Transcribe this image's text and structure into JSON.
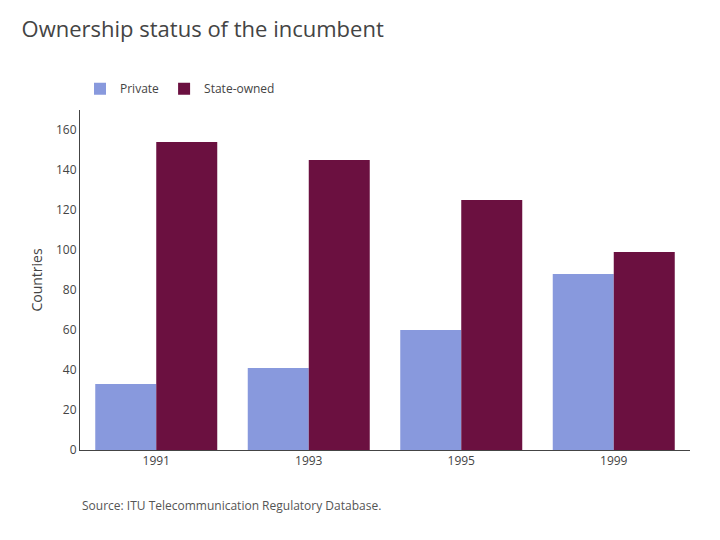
{
  "chart_data": {
    "type": "bar",
    "title": "Ownership status of the incumbent",
    "ylabel": "Countries",
    "source": "Source: ITU Telecommunication Regulatory Database.",
    "categories": [
      "1991",
      "1993",
      "1995",
      "1999"
    ],
    "series": [
      {
        "name": "Private",
        "color": "#8899DD",
        "values": [
          33,
          41,
          60,
          88
        ]
      },
      {
        "name": "State-owned",
        "color": "#6B1040",
        "values": [
          154,
          145,
          125,
          99
        ]
      }
    ],
    "ylim": [
      0,
      170
    ],
    "yticks": [
      0,
      20,
      40,
      60,
      80,
      100,
      120,
      140,
      160
    ],
    "grid": false,
    "legend": "top"
  }
}
